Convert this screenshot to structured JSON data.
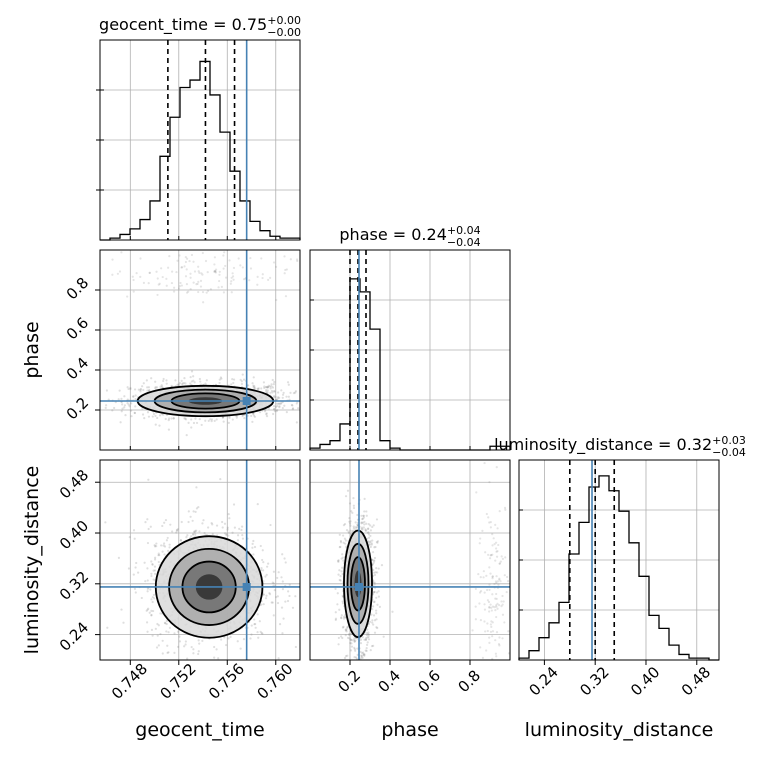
{
  "chart_data": {
    "type": "corner",
    "parameters": [
      {
        "key": "geocent_time",
        "label": "geocent_time",
        "range": [
          0.7455,
          0.762
        ],
        "ticks": [
          0.748,
          0.752,
          0.756,
          0.76
        ],
        "tick_labels": [
          "0.748",
          "0.752",
          "0.756",
          "0.760"
        ],
        "injection": 0.7576
      },
      {
        "key": "phase",
        "label": "phase",
        "range": [
          0.0,
          1.0
        ],
        "ticks": [
          0.2,
          0.4,
          0.6,
          0.8
        ],
        "tick_labels": [
          "0.2",
          "0.4",
          "0.6",
          "0.8"
        ],
        "injection": 0.245
      },
      {
        "key": "luminosity_distance",
        "label": "luminosity_distance",
        "range": [
          0.2,
          0.515
        ],
        "ticks": [
          0.24,
          0.32,
          0.4,
          0.48
        ],
        "tick_labels": [
          "0.24",
          "0.32",
          "0.40",
          "0.48"
        ],
        "injection": 0.315
      }
    ],
    "titles": [
      {
        "param": "geocent_time",
        "text": "geocent_time = 0.75",
        "plus": "+0.00",
        "minus": "−0.00"
      },
      {
        "param": "phase",
        "text": "phase = 0.24",
        "plus": "+0.04",
        "minus": "−0.04"
      },
      {
        "param": "luminosity_distance",
        "text": "luminosity_distance = 0.32",
        "plus": "+0.03",
        "minus": "−0.04"
      }
    ],
    "histograms": [
      {
        "param": "geocent_time",
        "edges_range": [
          0.7455,
          0.762
        ],
        "bins": 20,
        "counts": [
          0.0,
          0.01,
          0.03,
          0.06,
          0.11,
          0.21,
          0.45,
          0.66,
          0.82,
          0.86,
          0.96,
          0.78,
          0.58,
          0.37,
          0.21,
          0.1,
          0.05,
          0.02,
          0.01,
          0.01
        ],
        "quantiles": [
          0.7511,
          0.7542,
          0.7566
        ]
      },
      {
        "param": "phase",
        "edges_range": [
          0.0,
          1.0
        ],
        "bins": 20,
        "counts": [
          0.01,
          0.03,
          0.05,
          0.14,
          0.92,
          0.85,
          0.65,
          0.05,
          0.01,
          0.0,
          0.0,
          0.0,
          0.0,
          0.0,
          0.0,
          0.0,
          0.0,
          0.0,
          0.02,
          0.02
        ],
        "quantiles": [
          0.2,
          0.24,
          0.28
        ]
      },
      {
        "param": "luminosity_distance",
        "edges_range": [
          0.2,
          0.515
        ],
        "bins": 20,
        "counts": [
          0.01,
          0.05,
          0.12,
          0.2,
          0.31,
          0.57,
          0.74,
          0.93,
          0.99,
          0.91,
          0.8,
          0.63,
          0.45,
          0.24,
          0.17,
          0.08,
          0.03,
          0.01,
          0.01,
          0.0
        ],
        "quantiles": [
          0.28,
          0.32,
          0.35
        ]
      }
    ],
    "contours": [
      {
        "x": "geocent_time",
        "y": "phase",
        "center": [
          0.7542,
          0.245
        ],
        "sigma": [
          0.0028,
          0.038
        ],
        "scatter_center": [
          0.7545,
          0.25
        ],
        "secondary_cluster": [
          0.7535,
          0.88
        ]
      },
      {
        "x": "geocent_time",
        "y": "luminosity_distance",
        "center": [
          0.7545,
          0.315
        ],
        "sigma": [
          0.0022,
          0.04
        ],
        "scatter_center": [
          0.7545,
          0.32
        ]
      },
      {
        "x": "phase",
        "y": "luminosity_distance",
        "center": [
          0.24,
          0.32
        ],
        "sigma": [
          0.035,
          0.042
        ],
        "scatter_center": [
          0.24,
          0.32
        ],
        "secondary_cluster": [
          0.92,
          0.32
        ]
      }
    ],
    "colors": {
      "injection": "#4682b4",
      "hist": "#000000",
      "grid": "#b0b0b0",
      "scatter": "#7f7f7f"
    },
    "grid": true,
    "legend": "none"
  }
}
